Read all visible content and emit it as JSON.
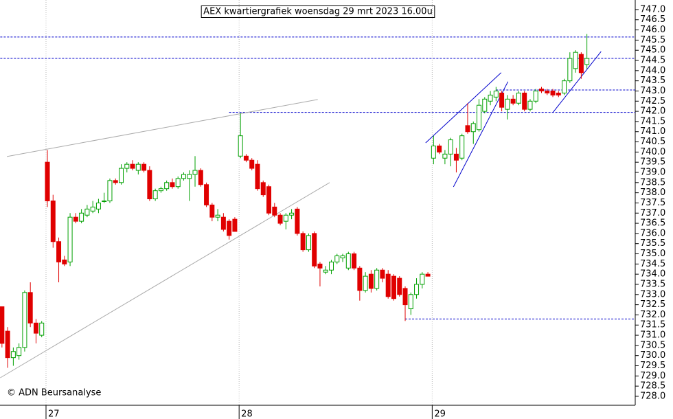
{
  "chart_data": {
    "type": "candlestick",
    "title": "AEX kwartiergrafiek woensdag 29 mrt 2023 16.00u",
    "watermark": "© ADN Beursanalyse",
    "categories": [
      null,
      null,
      null,
      null,
      null,
      null,
      null,
      null,
      "27",
      null,
      null,
      null,
      null,
      null,
      null,
      null,
      null,
      null,
      null,
      null,
      null,
      null,
      null,
      null,
      null,
      null,
      null,
      null,
      null,
      null,
      null,
      null,
      null,
      null,
      null,
      null,
      null,
      null,
      null,
      null,
      null,
      null,
      "28",
      null,
      null,
      null,
      null,
      null,
      null,
      null,
      null,
      null,
      null,
      null,
      null,
      null,
      null,
      null,
      null,
      null,
      null,
      null,
      null,
      null,
      null,
      null,
      null,
      null,
      null,
      null,
      null,
      null,
      null,
      null,
      null,
      null,
      "29",
      null,
      null,
      null,
      null,
      null,
      null,
      null,
      null,
      null,
      null,
      null,
      null,
      null,
      null,
      null,
      null,
      null,
      null,
      null,
      null,
      null,
      null,
      null,
      null,
      null,
      null,
      null
    ],
    "open": [
      732.4,
      731.2,
      729.9,
      730.0,
      730.4,
      733.1,
      731.6,
      731.0,
      739.5,
      737.6,
      735.6,
      734.7,
      734.6,
      736.8,
      736.6,
      736.9,
      737.1,
      737.2,
      737.6,
      737.6,
      738.6,
      738.5,
      739.2,
      739.4,
      739.1,
      739.4,
      739.1,
      737.7,
      738.1,
      738.2,
      738.5,
      738.3,
      738.7,
      738.7,
      738.9,
      739.1,
      738.4,
      737.4,
      736.8,
      736.8,
      736.6,
      736.7,
      739.8,
      739.8,
      739.6,
      739.4,
      738.5,
      738.3,
      737.3,
      736.9,
      736.6,
      736.9,
      737.2,
      736.0,
      735.2,
      736.0,
      734.5,
      734.1,
      734.2,
      734.6,
      734.8,
      734.3,
      735.0,
      734.3,
      733.2,
      734.0,
      733.3,
      734.2,
      734.0,
      733.9,
      733.8,
      733.3,
      732.3,
      733.0,
      733.5,
      734.0,
      739.7,
      740.3,
      739.7,
      739.9,
      739.9,
      739.7,
      741.3,
      741.0,
      741.1,
      742.0,
      742.5,
      742.7,
      742.9,
      742.1,
      742.6,
      742.4,
      742.9,
      742.1,
      742.5,
      743.1,
      743.0,
      743.0,
      742.9,
      742.9,
      743.5,
      744.1,
      744.8,
      744.3
    ],
    "high": [
      732.4,
      731.4,
      730.4,
      730.6,
      733.2,
      733.6,
      731.8,
      731.7,
      740.1,
      737.9,
      735.8,
      734.9,
      737.0,
      737.0,
      737.2,
      737.4,
      737.6,
      737.7,
      738.0,
      738.7,
      738.7,
      739.4,
      739.5,
      739.6,
      739.5,
      739.5,
      739.3,
      738.2,
      738.3,
      738.6,
      738.7,
      738.8,
      739.0,
      739.1,
      739.8,
      739.2,
      738.5,
      737.5,
      737.2,
      737.0,
      736.7,
      736.8,
      741.9,
      739.9,
      739.7,
      739.6,
      738.6,
      738.4,
      737.5,
      737.0,
      737.0,
      737.2,
      737.3,
      736.1,
      736.0,
      736.1,
      734.6,
      734.4,
      734.7,
      735.0,
      735.0,
      735.1,
      735.1,
      734.4,
      734.1,
      734.2,
      734.3,
      734.3,
      734.2,
      734.0,
      733.9,
      733.4,
      733.1,
      733.8,
      734.1,
      734.1,
      740.8,
      740.4,
      740.1,
      740.7,
      740.2,
      740.9,
      742.4,
      741.5,
      742.6,
      742.7,
      743.0,
      743.2,
      743.0,
      742.8,
      742.8,
      743.0,
      743.0,
      742.6,
      743.1,
      743.2,
      743.1,
      743.1,
      743.0,
      743.6,
      744.9,
      745.0,
      744.9,
      745.8
    ],
    "low": [
      730.4,
      729.4,
      729.5,
      729.8,
      730.2,
      731.4,
      730.6,
      730.9,
      737.3,
      735.3,
      733.6,
      734.4,
      734.4,
      736.5,
      736.5,
      736.8,
      737.0,
      737.0,
      737.5,
      737.5,
      738.4,
      738.4,
      739.0,
      739.1,
      738.9,
      739.0,
      737.6,
      737.6,
      738.0,
      738.1,
      738.2,
      738.2,
      738.6,
      737.6,
      738.3,
      738.3,
      737.3,
      736.6,
      736.6,
      736.1,
      735.7,
      736.1,
      739.7,
      739.5,
      739.1,
      738.1,
      737.8,
      736.9,
      736.8,
      736.4,
      736.2,
      736.7,
      735.9,
      735.1,
      735.1,
      734.3,
      733.4,
      734.0,
      734.0,
      734.5,
      734.6,
      734.2,
      734.2,
      732.7,
      733.1,
      733.1,
      733.2,
      733.6,
      732.8,
      732.7,
      732.9,
      731.7,
      732.0,
      732.8,
      733.3,
      733.9,
      739.4,
      739.9,
      739.4,
      739.3,
      739.0,
      739.6,
      740.9,
      740.4,
      741.0,
      741.9,
      742.3,
      742.5,
      742.0,
      741.6,
      742.3,
      742.3,
      742.0,
      742.0,
      742.4,
      742.9,
      742.8,
      742.7,
      742.7,
      742.8,
      743.4,
      743.9,
      743.6,
      744.1
    ],
    "close": [
      730.6,
      729.9,
      730.2,
      730.4,
      733.1,
      731.6,
      731.1,
      731.6,
      737.6,
      735.6,
      734.6,
      734.5,
      736.8,
      736.6,
      737.0,
      737.2,
      737.3,
      737.5,
      737.6,
      738.6,
      738.5,
      739.2,
      739.4,
      739.2,
      739.4,
      739.1,
      737.7,
      738.1,
      738.2,
      738.5,
      738.3,
      738.7,
      738.9,
      738.9,
      739.1,
      738.4,
      737.4,
      736.8,
      736.9,
      736.2,
      735.9,
      736.1,
      740.8,
      739.6,
      739.2,
      738.2,
      737.9,
      737.0,
      736.9,
      736.5,
      736.9,
      737.0,
      736.0,
      735.2,
      735.9,
      734.4,
      734.3,
      734.2,
      734.6,
      734.9,
      734.9,
      735.0,
      734.3,
      733.2,
      733.9,
      733.3,
      734.2,
      733.8,
      732.9,
      732.8,
      733.0,
      732.5,
      733.0,
      733.5,
      734.0,
      733.9,
      740.3,
      740.0,
      739.9,
      740.6,
      739.6,
      740.8,
      741.0,
      741.4,
      742.3,
      742.6,
      742.8,
      743.0,
      742.2,
      742.6,
      742.4,
      742.9,
      742.1,
      742.5,
      743.0,
      743.0,
      742.9,
      742.8,
      742.8,
      743.5,
      744.6,
      744.9,
      743.9,
      744.6
    ],
    "up_color": "#00a000",
    "down_color": "#e00000",
    "ylim": [
      727.56,
      747.47
    ],
    "yticks": [
      {
        "value": 728,
        "label": "728.0"
      },
      728.5,
      {
        "value": 729,
        "label": "729.0"
      },
      729.5,
      {
        "value": 730,
        "label": "730.0"
      },
      730.5,
      {
        "value": 731,
        "label": "731.0"
      },
      731.5,
      {
        "value": 732,
        "label": "732.0"
      },
      732.5,
      {
        "value": 733,
        "label": "733.0"
      },
      733.5,
      {
        "value": 734,
        "label": "734.0"
      },
      734.5,
      {
        "value": 735,
        "label": "735.0"
      },
      735.5,
      {
        "value": 736,
        "label": "736.0"
      },
      736.5,
      {
        "value": 737,
        "label": "737.0"
      },
      737.5,
      {
        "value": 738,
        "label": "738.0"
      },
      738.5,
      {
        "value": 739,
        "label": "739.0"
      },
      739.5,
      {
        "value": 740,
        "label": "740.0"
      },
      740.5,
      {
        "value": 741,
        "label": "741.0"
      },
      741.5,
      {
        "value": 742,
        "label": "742.0"
      },
      742.5,
      {
        "value": 743,
        "label": "743.0"
      },
      743.5,
      {
        "value": 744,
        "label": "744.0"
      },
      744.5,
      {
        "value": 745,
        "label": "745.0"
      },
      745.5,
      {
        "value": 746,
        "label": "746.0"
      },
      746.5,
      {
        "value": 747,
        "label": "747.0"
      }
    ],
    "hlines": [
      {
        "value": 745.65,
        "start": -0.3,
        "color": "#0000cc"
      },
      {
        "value": 744.6,
        "start": -0.3,
        "color": "#0000cc"
      },
      {
        "value": 743.05,
        "start": 87,
        "color": "#0000cc"
      },
      {
        "value": 741.95,
        "start": 40,
        "color": "#0000cc"
      },
      {
        "value": 731.8,
        "start": 71,
        "color": "#0000cc"
      }
    ],
    "trendlines": [
      {
        "x": [
          0.87,
          55.6
        ],
        "y": [
          739.78,
          742.58
        ],
        "color": "#aaaaaa"
      },
      {
        "x": [
          -0.3,
          57.7
        ],
        "y": [
          728.91,
          738.5
        ],
        "color": "#aaaaaa"
      },
      {
        "x": [
          74.6,
          87.9
        ],
        "y": [
          740.45,
          743.9
        ],
        "color": "#0000cc"
      },
      {
        "x": [
          79.5,
          89.1
        ],
        "y": [
          738.29,
          743.46
        ],
        "color": "#0000cc"
      },
      {
        "x": [
          97,
          105.5
        ],
        "y": [
          741.94,
          744.94
        ],
        "color": "#0000cc"
      }
    ]
  }
}
